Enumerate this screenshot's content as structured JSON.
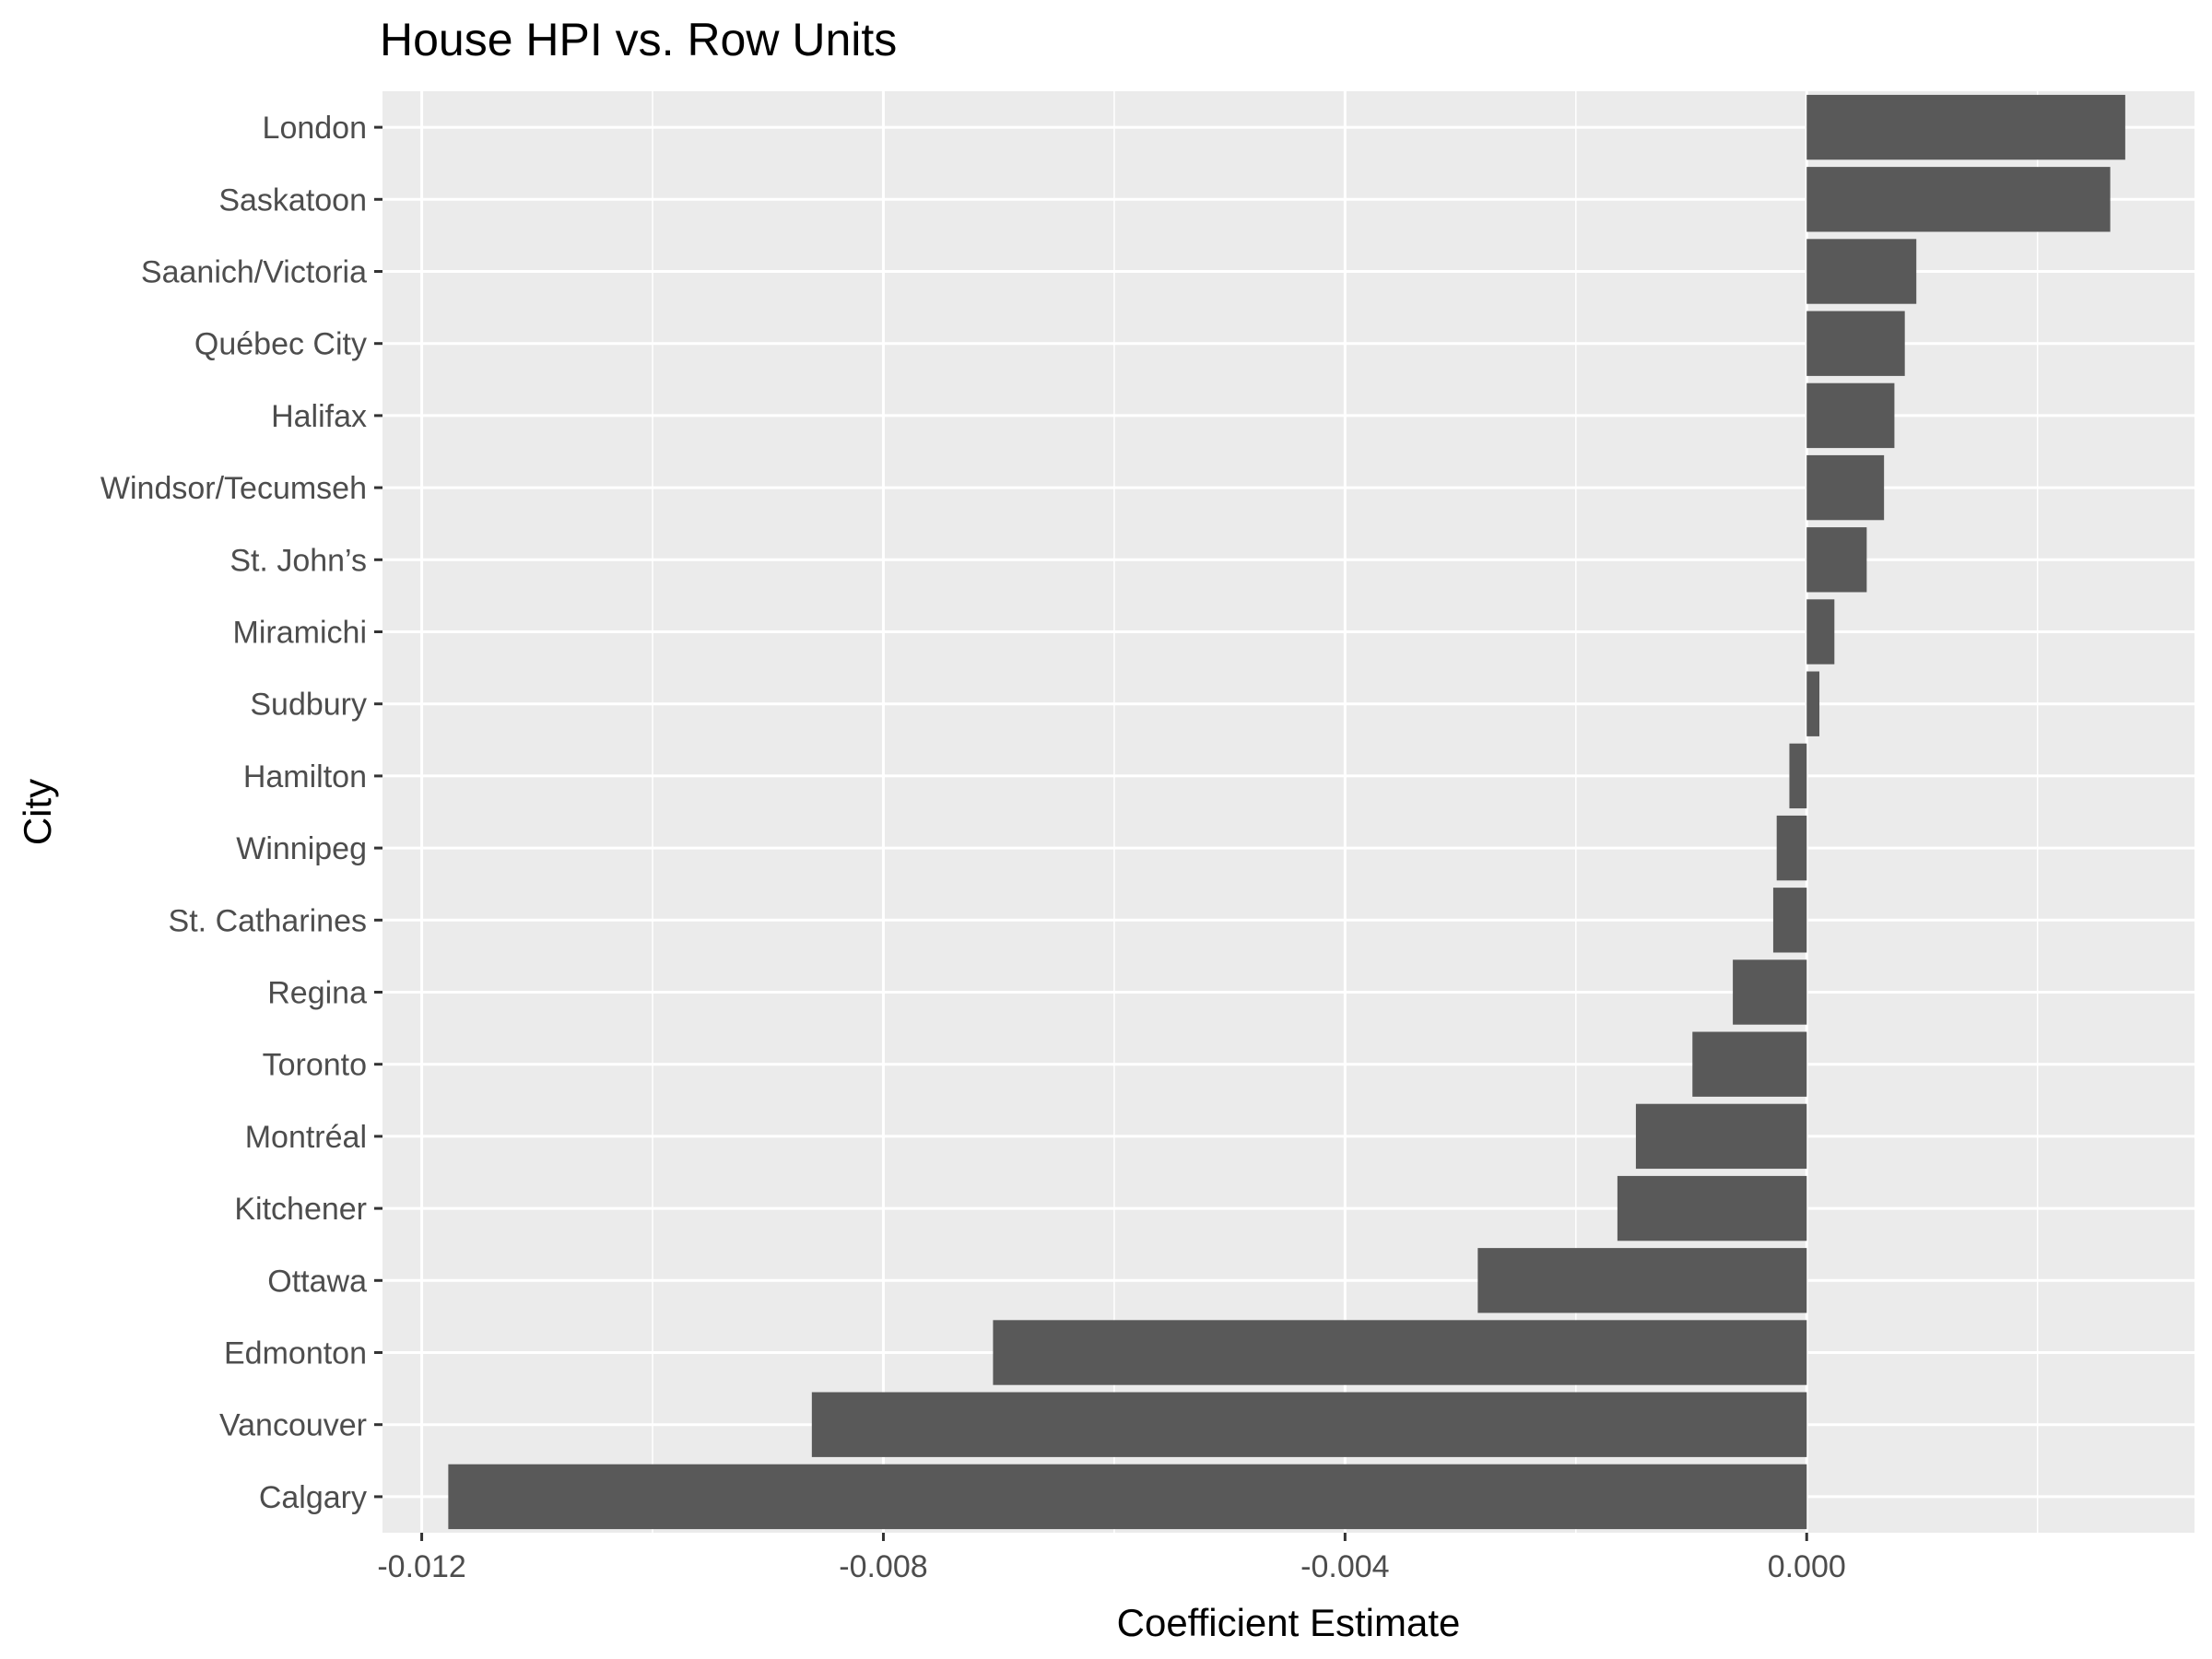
{
  "chart_data": {
    "type": "bar",
    "orientation": "horizontal",
    "title": "House HPI vs. Row Units",
    "xlabel": "Coefficient Estimate",
    "ylabel": "City",
    "categories": [
      "London",
      "Saskatoon",
      "Saanich/Victoria",
      "Québec City",
      "Halifax",
      "Windsor/Tecumseh",
      "St. John’s",
      "Miramichi",
      "Sudbury",
      "Hamilton",
      "Winnipeg",
      "St. Catharines",
      "Regina",
      "Toronto",
      "Montréal",
      "Kitchener",
      "Ottawa",
      "Edmonton",
      "Vancouver",
      "Calgary"
    ],
    "values": [
      0.00276,
      0.00263,
      0.00095,
      0.00085,
      0.00076,
      0.00067,
      0.00052,
      0.00024,
      0.00011,
      -0.00015,
      -0.00026,
      -0.00029,
      -0.00064,
      -0.00099,
      -0.00148,
      -0.00164,
      -0.00285,
      -0.00705,
      -0.00862,
      -0.01177
    ],
    "xticks": [
      -0.012,
      -0.008,
      -0.004,
      0.0
    ],
    "xtick_labels": [
      "-0.012",
      "-0.008",
      "-0.004",
      "0.000"
    ],
    "xlim": [
      -0.01234,
      0.00336
    ],
    "bar_color": "#595959",
    "panel_background": "#ebebeb",
    "grid": true
  }
}
